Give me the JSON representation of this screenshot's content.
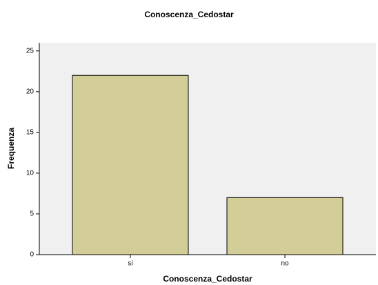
{
  "chart_data": {
    "type": "bar",
    "title": "Conoscenza_Cedostar",
    "x_label": "Conoscenza_Cedostar",
    "y_label": "Frequenza",
    "categories": [
      "si",
      "no"
    ],
    "values": [
      22,
      7
    ],
    "color": "#d3ce97",
    "ylim": [
      0,
      26
    ],
    "yticks": [
      0,
      5,
      10,
      15,
      20,
      25
    ],
    "grid": false
  }
}
